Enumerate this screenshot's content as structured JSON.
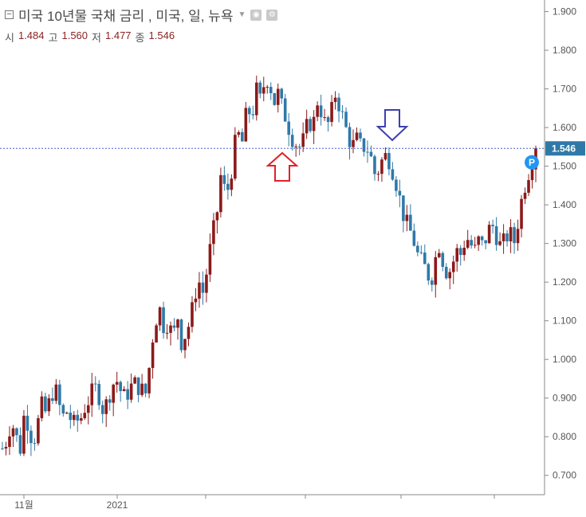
{
  "header": {
    "collapse_icon": "minus-box-icon",
    "title": "미국 10년물 국채 금리 , 미국, 일, 뉴욕",
    "labels": {
      "open": "시",
      "high": "고",
      "low": "저",
      "close": "종"
    },
    "values": {
      "open": "1.484",
      "high": "1.560",
      "low": "1.477",
      "close": "1.546"
    },
    "icons": [
      "chevron-down-icon",
      "eye-icon",
      "gear-icon"
    ]
  },
  "colors": {
    "up": "#8b1a1a",
    "down": "#2f79a8",
    "price_line": "#4a5fd0",
    "badge": "#2f79a8",
    "marker_p": "#2196f3",
    "arrow_up": "#e0202a",
    "arrow_down": "#3e3fb0"
  },
  "chart_data": {
    "type": "candlestick",
    "y_axis": {
      "position": "right",
      "ticks": [
        "0.700",
        "0.800",
        "0.900",
        "1.000",
        "1.100",
        "1.200",
        "1.300",
        "1.400",
        "1.500",
        "1.600",
        "1.700",
        "1.800",
        "1.900"
      ],
      "ylim": [
        0.65,
        1.93
      ]
    },
    "x_axis": {
      "ticks": [
        "11월",
        "2021"
      ]
    },
    "last_price_label": "1.546",
    "marker_label": "P",
    "arrows": [
      {
        "direction": "up",
        "near_value": 1.52
      },
      {
        "direction": "down",
        "near_value": 1.56
      }
    ],
    "close_path": [
      0.77,
      0.79,
      0.84,
      0.81,
      0.76,
      0.86,
      0.83,
      0.78,
      0.83,
      0.88,
      0.86,
      0.9,
      0.93,
      0.88,
      0.85,
      0.87,
      0.83,
      0.84,
      0.85,
      0.88,
      0.9,
      0.93,
      0.91,
      0.87,
      0.89,
      0.93,
      0.95,
      0.92,
      0.9,
      0.92,
      0.94,
      0.93,
      0.92,
      0.91,
      1.03,
      1.1,
      1.13,
      1.08,
      1.1,
      1.05,
      1.12,
      1.04,
      1.07,
      1.1,
      1.17,
      1.2,
      1.17,
      1.25,
      1.32,
      1.37,
      1.48,
      1.43,
      1.45,
      1.55,
      1.58,
      1.56,
      1.66,
      1.62,
      1.7,
      1.67,
      1.72,
      1.73,
      1.66,
      1.69,
      1.65,
      1.62,
      1.58,
      1.56,
      1.55,
      1.57,
      1.62,
      1.6,
      1.67,
      1.64,
      1.6,
      1.62,
      1.69,
      1.66,
      1.62,
      1.58,
      1.55,
      1.57,
      1.55,
      1.55,
      1.54,
      1.48,
      1.49,
      1.52,
      1.53,
      1.5,
      1.46,
      1.41,
      1.36,
      1.34,
      1.31,
      1.27,
      1.25,
      1.23,
      1.2,
      1.26,
      1.3,
      1.24,
      1.22,
      1.25,
      1.28,
      1.27,
      1.32,
      1.3,
      1.28,
      1.31,
      1.29,
      1.33,
      1.35,
      1.32,
      1.29,
      1.31,
      1.33,
      1.3,
      1.36,
      1.43,
      1.47,
      1.51,
      1.546
    ]
  }
}
